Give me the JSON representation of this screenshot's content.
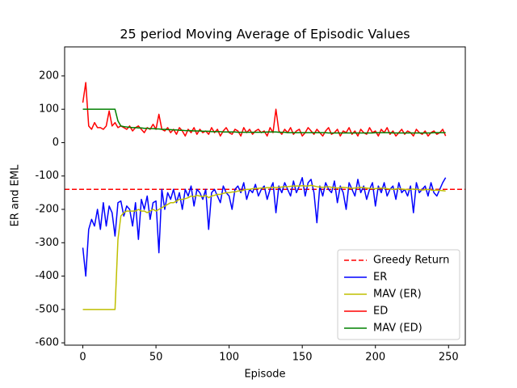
{
  "chart_data": {
    "type": "line",
    "title": "25 period Moving Average of Episodic Values",
    "x_label": "Episode",
    "y_label": "ER and EML",
    "xlim": [
      -12.45,
      261.45
    ],
    "ylim": [
      -607,
      287
    ],
    "xticks": [
      0,
      50,
      100,
      150,
      200,
      250
    ],
    "yticks": [
      -600,
      -500,
      -400,
      -300,
      -200,
      -100,
      0,
      100,
      200
    ],
    "legend_position": "lower right",
    "hlines": [
      {
        "name": "Greedy Return",
        "value": -140,
        "color": "#ff0000",
        "linestyle": "dashed"
      }
    ],
    "x": [
      0,
      2,
      4,
      6,
      8,
      10,
      12,
      14,
      16,
      18,
      20,
      22,
      24,
      26,
      28,
      30,
      32,
      34,
      36,
      38,
      40,
      42,
      44,
      46,
      48,
      50,
      52,
      54,
      56,
      58,
      60,
      62,
      64,
      66,
      68,
      70,
      72,
      74,
      76,
      78,
      80,
      82,
      84,
      86,
      88,
      90,
      92,
      94,
      96,
      98,
      100,
      102,
      104,
      106,
      108,
      110,
      112,
      114,
      116,
      118,
      120,
      122,
      124,
      126,
      128,
      130,
      132,
      134,
      136,
      138,
      140,
      142,
      144,
      146,
      148,
      150,
      152,
      154,
      156,
      158,
      160,
      162,
      164,
      166,
      168,
      170,
      172,
      174,
      176,
      178,
      180,
      182,
      184,
      186,
      188,
      190,
      192,
      194,
      196,
      198,
      200,
      202,
      204,
      206,
      208,
      210,
      212,
      214,
      216,
      218,
      220,
      222,
      224,
      226,
      228,
      230,
      232,
      234,
      236,
      238,
      240,
      242,
      244,
      246,
      248
    ],
    "series": [
      {
        "name": "ER",
        "color": "#0000ff",
        "values": [
          -315,
          -400,
          -260,
          -230,
          -250,
          -200,
          -260,
          -180,
          -250,
          -190,
          -210,
          -280,
          -180,
          -175,
          -220,
          -190,
          -200,
          -250,
          -180,
          -290,
          -170,
          -200,
          -160,
          -230,
          -180,
          -175,
          -330,
          -140,
          -200,
          -150,
          -170,
          -140,
          -180,
          -150,
          -200,
          -140,
          -160,
          -130,
          -190,
          -140,
          -150,
          -170,
          -140,
          -260,
          -150,
          -140,
          -160,
          -180,
          -130,
          -150,
          -160,
          -200,
          -140,
          -130,
          -150,
          -120,
          -170,
          -140,
          -150,
          -125,
          -160,
          -140,
          -130,
          -170,
          -140,
          -120,
          -210,
          -130,
          -150,
          -120,
          -140,
          -160,
          -115,
          -150,
          -130,
          -105,
          -160,
          -120,
          -110,
          -150,
          -240,
          -130,
          -160,
          -120,
          -140,
          -150,
          -115,
          -180,
          -130,
          -150,
          -200,
          -120,
          -140,
          -160,
          -110,
          -150,
          -130,
          -170,
          -140,
          -120,
          -190,
          -130,
          -150,
          -120,
          -160,
          -140,
          -130,
          -170,
          -120,
          -150,
          -140,
          -160,
          -130,
          -210,
          -120,
          -150,
          -140,
          -130,
          -160,
          -120,
          -150,
          -160,
          -140,
          -120,
          -105
        ]
      },
      {
        "name": "MAV (ER)",
        "color": "#bfbf00",
        "values": [
          -500,
          -500,
          -500,
          -500,
          -500,
          -500,
          -500,
          -500,
          -500,
          -500,
          -500,
          -500,
          -290,
          -220,
          -210,
          -205,
          -205,
          -205,
          -205,
          -200,
          -205,
          -205,
          -210,
          -205,
          -200,
          -205,
          -200,
          -195,
          -190,
          -185,
          -180,
          -180,
          -175,
          -170,
          -170,
          -168,
          -165,
          -160,
          -162,
          -158,
          -160,
          -162,
          -158,
          -165,
          -160,
          -158,
          -155,
          -155,
          -152,
          -150,
          -150,
          -148,
          -148,
          -145,
          -145,
          -142,
          -140,
          -140,
          -138,
          -138,
          -137,
          -136,
          -136,
          -135,
          -135,
          -134,
          -135,
          -134,
          -133,
          -132,
          -132,
          -131,
          -130,
          -130,
          -130,
          -129,
          -130,
          -130,
          -128,
          -130,
          -132,
          -133,
          -134,
          -133,
          -132,
          -134,
          -135,
          -136,
          -135,
          -134,
          -135,
          -136,
          -137,
          -136,
          -135,
          -134,
          -135,
          -136,
          -137,
          -138,
          -138,
          -137,
          -136,
          -137,
          -138,
          -139,
          -140,
          -139,
          -138,
          -139,
          -140,
          -141,
          -140,
          -139,
          -140,
          -141,
          -142,
          -141,
          -140,
          -142,
          -143,
          -142,
          -143,
          -144,
          -145
        ]
      },
      {
        "name": "ED",
        "color": "#ff0000",
        "values": [
          120,
          180,
          50,
          40,
          60,
          45,
          45,
          40,
          50,
          95,
          50,
          60,
          45,
          50,
          45,
          40,
          50,
          35,
          45,
          50,
          40,
          30,
          45,
          40,
          55,
          40,
          85,
          40,
          35,
          45,
          30,
          40,
          25,
          45,
          35,
          20,
          40,
          30,
          45,
          25,
          40,
          30,
          35,
          25,
          45,
          30,
          40,
          20,
          35,
          45,
          30,
          25,
          40,
          35,
          20,
          45,
          30,
          40,
          25,
          35,
          40,
          30,
          35,
          20,
          45,
          30,
          100,
          35,
          25,
          40,
          30,
          45,
          25,
          35,
          40,
          20,
          30,
          45,
          35,
          25,
          40,
          30,
          20,
          35,
          45,
          25,
          30,
          40,
          20,
          35,
          30,
          45,
          25,
          35,
          20,
          40,
          30,
          25,
          45,
          30,
          35,
          20,
          40,
          30,
          45,
          25,
          35,
          20,
          30,
          40,
          25,
          35,
          30,
          20,
          40,
          30,
          25,
          35,
          20,
          30,
          35,
          25,
          30,
          40,
          20
        ]
      },
      {
        "name": "MAV (ED)",
        "color": "#008000",
        "values": [
          100,
          100,
          100,
          100,
          100,
          100,
          100,
          100,
          100,
          100,
          100,
          100,
          65,
          50,
          48,
          47,
          46,
          45,
          45,
          44,
          44,
          43,
          43,
          42,
          42,
          41,
          41,
          40,
          40,
          39,
          39,
          38,
          38,
          37,
          37,
          36,
          36,
          36,
          35,
          35,
          35,
          34,
          34,
          34,
          33,
          33,
          33,
          33,
          32,
          32,
          32,
          32,
          32,
          31,
          31,
          31,
          31,
          31,
          31,
          31,
          31,
          31,
          31,
          32,
          32,
          32,
          32,
          31,
          31,
          31,
          30,
          30,
          30,
          30,
          30,
          30,
          30,
          30,
          30,
          30,
          30,
          30,
          30,
          30,
          29,
          29,
          29,
          29,
          29,
          29,
          29,
          29,
          29,
          29,
          29,
          29,
          29,
          29,
          29,
          29,
          30,
          30,
          30,
          30,
          30,
          30,
          29,
          29,
          29,
          29,
          29,
          29,
          29,
          29,
          29,
          29,
          29,
          29,
          29,
          29,
          30,
          30,
          30,
          30,
          30
        ]
      }
    ]
  }
}
